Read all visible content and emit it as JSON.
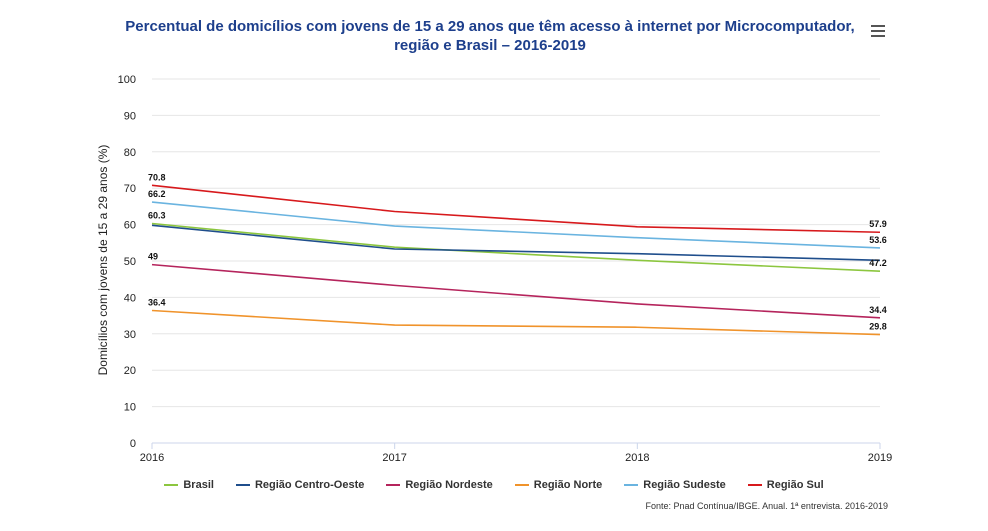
{
  "chart_data": {
    "type": "line",
    "title": "Percentual de domicílios com jovens de 15 a 29 anos que têm acesso à internet por Microcomputador, região e Brasil – 2016-2019",
    "xlabel": "",
    "ylabel": "Domicílios com jovens de 15 a 29 anos (%)",
    "categories": [
      "2016",
      "2017",
      "2018",
      "2019"
    ],
    "ylim": [
      0,
      100
    ],
    "yticks": [
      "0",
      "10",
      "20",
      "30",
      "40",
      "50",
      "60",
      "70",
      "80",
      "90",
      "100"
    ],
    "grid": true,
    "legend_position": "bottom-center",
    "series": [
      {
        "name": "Brasil",
        "color": "#8cc63f",
        "values": [
          60.3,
          53.8,
          50.2,
          47.2
        ],
        "labels": [
          "60.3",
          "",
          "",
          "47.2"
        ]
      },
      {
        "name": "Região Centro-Oeste",
        "color": "#1f4e8c",
        "values": [
          59.8,
          53.3,
          52.0,
          50.2
        ],
        "labels": [
          "",
          "",
          "",
          ""
        ]
      },
      {
        "name": "Região Nordeste",
        "color": "#b5245c",
        "values": [
          49.0,
          43.3,
          38.2,
          34.4
        ],
        "labels": [
          "49",
          "",
          "",
          "34.4"
        ]
      },
      {
        "name": "Região Norte",
        "color": "#f0932b",
        "values": [
          36.4,
          32.4,
          31.8,
          29.8
        ],
        "labels": [
          "36.4",
          "",
          "",
          "29.8"
        ]
      },
      {
        "name": "Região Sudeste",
        "color": "#6ab4e0",
        "values": [
          66.2,
          59.6,
          56.4,
          53.6
        ],
        "labels": [
          "66.2",
          "",
          "",
          "53.6"
        ]
      },
      {
        "name": "Região Sul",
        "color": "#d7191c",
        "values": [
          70.8,
          63.6,
          59.4,
          57.9
        ],
        "labels": [
          "70.8",
          "",
          "",
          "57.9"
        ]
      }
    ],
    "source": "Fonte: Pnad Contínua/IBGE. Anual. 1ª entrevista. 2016-2019"
  }
}
